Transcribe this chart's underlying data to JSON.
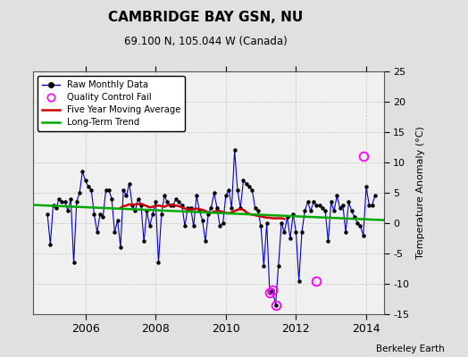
{
  "title": "CAMBRIDGE BAY GSN, NU",
  "subtitle": "69.100 N, 105.044 W (Canada)",
  "ylabel": "Temperature Anomaly (°C)",
  "footer": "Berkeley Earth",
  "xlim": [
    2004.5,
    2014.5
  ],
  "ylim": [
    -15,
    25
  ],
  "yticks": [
    -15,
    -10,
    -5,
    0,
    5,
    10,
    15,
    20,
    25
  ],
  "xticks": [
    2006,
    2008,
    2010,
    2012,
    2014
  ],
  "bg_color": "#e0e0e0",
  "plot_bg_color": "#f0f0f0",
  "raw_color": "#0000cc",
  "ma_color": "#cc0000",
  "trend_color": "#00aa00",
  "qc_color": "#ff00ff",
  "raw_monthly_x": [
    2004.917,
    2005.0,
    2005.083,
    2005.167,
    2005.25,
    2005.333,
    2005.417,
    2005.5,
    2005.583,
    2005.667,
    2005.75,
    2005.833,
    2005.917,
    2006.0,
    2006.083,
    2006.167,
    2006.25,
    2006.333,
    2006.417,
    2006.5,
    2006.583,
    2006.667,
    2006.75,
    2006.833,
    2006.917,
    2007.0,
    2007.083,
    2007.167,
    2007.25,
    2007.333,
    2007.417,
    2007.5,
    2007.583,
    2007.667,
    2007.75,
    2007.833,
    2007.917,
    2008.0,
    2008.083,
    2008.167,
    2008.25,
    2008.333,
    2008.417,
    2008.5,
    2008.583,
    2008.667,
    2008.75,
    2008.833,
    2008.917,
    2009.0,
    2009.083,
    2009.167,
    2009.25,
    2009.333,
    2009.417,
    2009.5,
    2009.583,
    2009.667,
    2009.75,
    2009.833,
    2009.917,
    2010.0,
    2010.083,
    2010.167,
    2010.25,
    2010.333,
    2010.417,
    2010.5,
    2010.583,
    2010.667,
    2010.75,
    2010.833,
    2010.917,
    2011.0,
    2011.083,
    2011.167,
    2011.25,
    2011.333,
    2011.417,
    2011.5,
    2011.583,
    2011.667,
    2011.75,
    2011.833,
    2011.917,
    2012.0,
    2012.083,
    2012.167,
    2012.25,
    2012.333,
    2012.417,
    2012.5,
    2012.583,
    2012.667,
    2012.75,
    2012.833,
    2012.917,
    2013.0,
    2013.083,
    2013.167,
    2013.25,
    2013.333,
    2013.417,
    2013.5,
    2013.583,
    2013.667,
    2013.75,
    2013.833,
    2013.917,
    2014.0,
    2014.083,
    2014.167,
    2014.25
  ],
  "raw_monthly_y": [
    1.5,
    -3.5,
    3.0,
    2.5,
    4.0,
    3.5,
    3.5,
    2.0,
    4.0,
    -6.5,
    3.5,
    5.0,
    8.5,
    7.0,
    6.0,
    5.5,
    1.5,
    -1.5,
    1.5,
    1.0,
    5.5,
    5.5,
    4.0,
    -1.5,
    0.5,
    -4.0,
    5.5,
    4.5,
    6.5,
    3.0,
    2.0,
    4.0,
    3.0,
    -3.0,
    2.0,
    -0.5,
    1.5,
    3.5,
    -6.5,
    1.5,
    4.5,
    3.5,
    3.0,
    3.0,
    4.0,
    3.5,
    3.0,
    -0.5,
    2.5,
    2.5,
    -0.5,
    4.5,
    2.0,
    0.5,
    -3.0,
    1.5,
    2.5,
    5.0,
    2.5,
    -0.5,
    0.0,
    4.5,
    5.5,
    2.5,
    12.0,
    5.5,
    2.5,
    7.0,
    6.5,
    6.0,
    5.5,
    2.5,
    2.0,
    -0.5,
    -7.0,
    0.0,
    -11.5,
    -11.0,
    -13.5,
    -7.0,
    0.0,
    -1.5,
    1.0,
    -2.5,
    1.5,
    -1.5,
    -9.5,
    -1.5,
    2.0,
    3.5,
    2.0,
    3.5,
    3.0,
    3.0,
    2.5,
    2.0,
    -3.0,
    3.5,
    2.0,
    4.5,
    2.5,
    3.0,
    -1.5,
    3.5,
    2.0,
    1.0,
    0.0,
    -0.5,
    -2.0,
    6.0,
    3.0,
    3.0,
    4.5
  ],
  "ma_x": [
    2007.0,
    2007.083,
    2007.167,
    2007.25,
    2007.333,
    2007.417,
    2007.5,
    2007.583,
    2007.667,
    2007.75,
    2007.833,
    2007.917,
    2008.0,
    2008.083,
    2008.167,
    2008.25,
    2008.333,
    2008.417,
    2008.5,
    2008.583,
    2008.667,
    2008.75,
    2008.833,
    2008.917,
    2009.0,
    2009.083,
    2009.167,
    2009.25,
    2009.333,
    2009.417,
    2009.5,
    2009.583,
    2009.667,
    2009.75,
    2009.833,
    2009.917,
    2010.0,
    2010.083,
    2010.167,
    2010.25,
    2010.333,
    2010.417,
    2010.5,
    2010.583,
    2010.667,
    2010.75,
    2010.833,
    2010.917,
    2011.0,
    2011.083,
    2011.167,
    2011.25,
    2011.333,
    2011.583,
    2011.667
  ],
  "ma_y": [
    2.5,
    2.8,
    2.9,
    3.1,
    3.0,
    3.1,
    3.1,
    3.2,
    3.0,
    2.8,
    2.6,
    2.7,
    2.8,
    2.9,
    2.8,
    2.7,
    2.9,
    3.0,
    3.0,
    2.9,
    2.8,
    2.6,
    2.4,
    2.3,
    2.2,
    2.3,
    2.4,
    2.3,
    2.2,
    2.0,
    1.8,
    1.7,
    1.9,
    2.0,
    2.0,
    1.8,
    1.7,
    1.6,
    1.8,
    2.0,
    2.2,
    2.3,
    2.2,
    1.8,
    1.5,
    1.4,
    1.3,
    1.2,
    1.1,
    1.0,
    0.9,
    0.9,
    0.8,
    0.8,
    0.7
  ],
  "trend_x": [
    2004.5,
    2014.5
  ],
  "trend_y": [
    3.0,
    0.5
  ],
  "qc_x": [
    2011.25,
    2011.333,
    2011.417,
    2012.583,
    2013.917
  ],
  "qc_y": [
    -11.5,
    -11.0,
    -13.5,
    -9.5,
    11.0
  ]
}
